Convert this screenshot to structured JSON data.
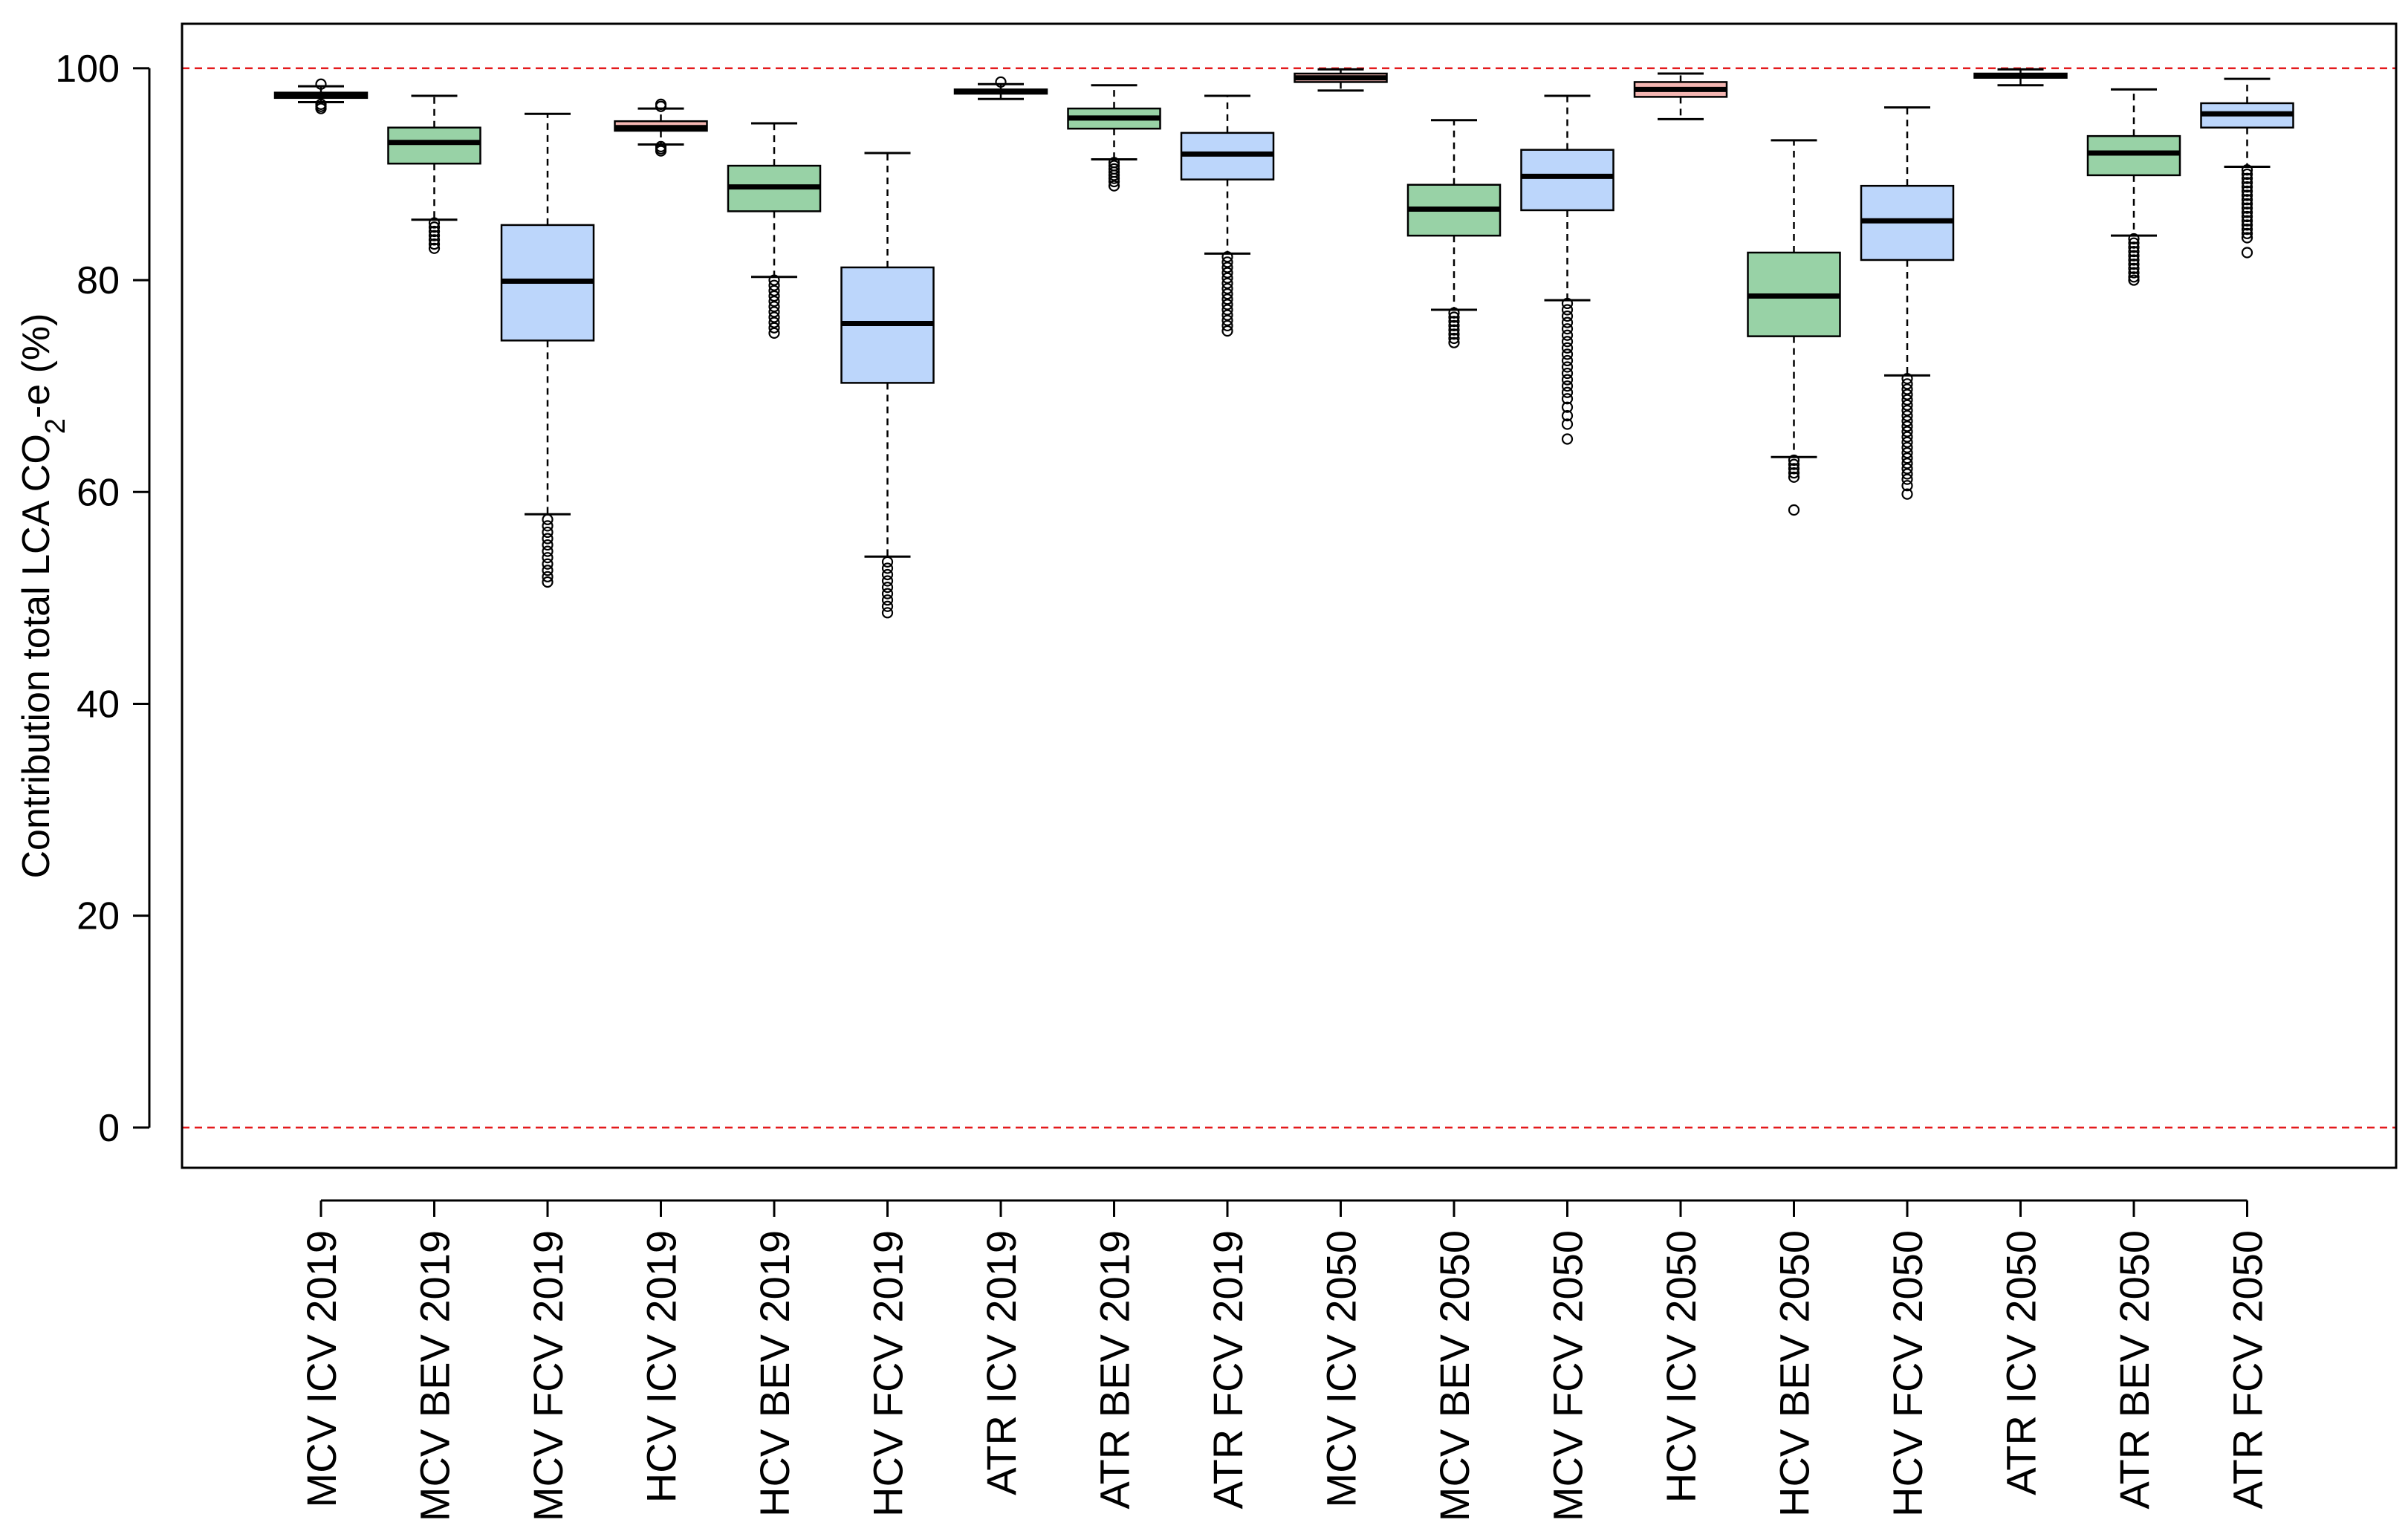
{
  "chart_data": {
    "type": "boxplot",
    "title": "",
    "xlabel": "",
    "ylabel": {
      "prefix": "Contribution total LCA CO",
      "subscript": "2",
      "suffix": "-e (%)"
    },
    "ylim": [
      -3.8,
      104.2
    ],
    "yticks": [
      0,
      20,
      40,
      60,
      80,
      100
    ],
    "ytick_labels": [
      "0",
      "20",
      "40",
      "60",
      "80",
      "100"
    ],
    "reference_lines": [
      100,
      0
    ],
    "reference_line_color": "#e41a1c",
    "colors": {
      "ICV": "#f4b6b2",
      "BEV": "#98d2a6",
      "FCV": "#bcd6fb"
    },
    "categories": [
      "MCV ICV 2019",
      "MCV BEV 2019",
      "MCV FCV 2019",
      "HCV ICV 2019",
      "HCV BEV 2019",
      "HCV FCV 2019",
      "ATR ICV 2019",
      "ATR BEV 2019",
      "ATR FCV 2019",
      "MCV ICV 2050",
      "MCV BEV 2050",
      "MCV FCV 2050",
      "HCV ICV 2050",
      "HCV BEV 2050",
      "HCV FCV 2050",
      "ATR ICV 2050",
      "ATR BEV 2050",
      "ATR FCV 2050"
    ],
    "boxes": [
      {
        "label": "MCV ICV 2019",
        "group": "ICV",
        "whisker_low": 96.8,
        "q1": 97.2,
        "median": 97.5,
        "q3": 97.7,
        "whisker_high": 98.3,
        "outliers_low": [
          96.6,
          96.4,
          96.2
        ],
        "outliers_high": [
          98.5
        ]
      },
      {
        "label": "MCV BEV 2019",
        "group": "BEV",
        "whisker_low": 85.7,
        "q1": 91.0,
        "median": 93.0,
        "q3": 94.4,
        "whisker_high": 97.4,
        "outliers_low": [
          85.4,
          85.0,
          84.6,
          84.2,
          83.8,
          83.4,
          83.0
        ],
        "outliers_high": []
      },
      {
        "label": "MCV FCV 2019",
        "group": "FCV",
        "whisker_low": 57.9,
        "q1": 74.3,
        "median": 79.9,
        "q3": 85.2,
        "whisker_high": 95.7,
        "outliers_low": [
          57.4,
          56.8,
          56.2,
          55.6,
          55.0,
          54.4,
          53.8,
          53.2,
          52.6,
          52.0,
          51.5
        ],
        "outliers_high": []
      },
      {
        "label": "HCV ICV 2019",
        "group": "ICV",
        "whisker_low": 92.8,
        "q1": 94.1,
        "median": 94.4,
        "q3": 95.0,
        "whisker_high": 96.2,
        "outliers_low": [
          92.6,
          92.4,
          92.2
        ],
        "outliers_high": [
          96.4,
          96.6
        ]
      },
      {
        "label": "HCV BEV 2019",
        "group": "BEV",
        "whisker_low": 80.3,
        "q1": 86.5,
        "median": 88.8,
        "q3": 90.8,
        "whisker_high": 94.8,
        "outliers_low": [
          80.0,
          79.5,
          79.0,
          78.5,
          78.0,
          77.5,
          77.0,
          76.5,
          76.0,
          75.5,
          75.0
        ],
        "outliers_high": []
      },
      {
        "label": "HCV FCV 2019",
        "group": "FCV",
        "whisker_low": 53.9,
        "q1": 70.3,
        "median": 75.9,
        "q3": 81.2,
        "whisker_high": 92.0,
        "outliers_low": [
          53.4,
          52.8,
          52.2,
          51.6,
          51.0,
          50.4,
          49.8,
          49.2,
          48.6
        ],
        "outliers_high": []
      },
      {
        "label": "ATR ICV 2019",
        "group": "ICV",
        "whisker_low": 97.1,
        "q1": 97.6,
        "median": 97.8,
        "q3": 98.0,
        "whisker_high": 98.5,
        "outliers_low": [],
        "outliers_high": [
          98.7
        ]
      },
      {
        "label": "ATR BEV 2019",
        "group": "BEV",
        "whisker_low": 91.4,
        "q1": 94.3,
        "median": 95.3,
        "q3": 96.2,
        "whisker_high": 98.4,
        "outliers_low": [
          91.1,
          90.8,
          90.5,
          90.2,
          89.9,
          89.6,
          89.3,
          88.9
        ],
        "outliers_high": []
      },
      {
        "label": "ATR FCV 2019",
        "group": "FCV",
        "whisker_low": 82.5,
        "q1": 89.5,
        "median": 91.9,
        "q3": 93.9,
        "whisker_high": 97.4,
        "outliers_low": [
          82.2,
          81.7,
          81.2,
          80.7,
          80.2,
          79.7,
          79.2,
          78.7,
          78.2,
          77.7,
          77.2,
          76.7,
          76.2,
          75.7,
          75.2
        ],
        "outliers_high": []
      },
      {
        "label": "MCV ICV 2050",
        "group": "ICV",
        "whisker_low": 97.9,
        "q1": 98.7,
        "median": 99.1,
        "q3": 99.5,
        "whisker_high": 99.9,
        "outliers_low": [],
        "outliers_high": []
      },
      {
        "label": "MCV BEV 2050",
        "group": "BEV",
        "whisker_low": 77.2,
        "q1": 84.2,
        "median": 86.7,
        "q3": 89.0,
        "whisker_high": 95.1,
        "outliers_low": [
          76.9,
          76.5,
          76.1,
          75.7,
          75.3,
          74.9,
          74.5,
          74.1
        ],
        "outliers_high": []
      },
      {
        "label": "MCV FCV 2050",
        "group": "FCV",
        "whisker_low": 78.1,
        "q1": 86.6,
        "median": 89.8,
        "q3": 92.3,
        "whisker_high": 97.4,
        "outliers_low": [
          77.8,
          77.2,
          76.6,
          76.0,
          75.4,
          74.8,
          74.2,
          73.6,
          73.0,
          72.4,
          71.8,
          71.2,
          70.6,
          70.0,
          69.4,
          68.8,
          68.0,
          67.2,
          66.4,
          65.0
        ],
        "outliers_high": []
      },
      {
        "label": "HCV ICV 2050",
        "group": "ICV",
        "whisker_low": 95.2,
        "q1": 97.3,
        "median": 98.0,
        "q3": 98.7,
        "whisker_high": 99.5,
        "outliers_low": [],
        "outliers_high": []
      },
      {
        "label": "HCV BEV 2050",
        "group": "BEV",
        "whisker_low": 63.3,
        "q1": 74.7,
        "median": 78.5,
        "q3": 82.6,
        "whisker_high": 93.2,
        "outliers_low": [
          63.0,
          62.6,
          62.2,
          61.8,
          61.4,
          58.3
        ],
        "outliers_high": []
      },
      {
        "label": "HCV FCV 2050",
        "group": "FCV",
        "whisker_low": 71.0,
        "q1": 81.9,
        "median": 85.6,
        "q3": 88.9,
        "whisker_high": 96.3,
        "outliers_low": [
          70.7,
          70.2,
          69.7,
          69.2,
          68.7,
          68.2,
          67.7,
          67.2,
          66.7,
          66.2,
          65.7,
          65.2,
          64.7,
          64.2,
          63.7,
          63.2,
          62.7,
          62.2,
          61.7,
          61.2,
          60.6,
          59.8
        ],
        "outliers_high": []
      },
      {
        "label": "ATR ICV 2050",
        "group": "ICV",
        "whisker_low": 98.4,
        "q1": 99.1,
        "median": 99.3,
        "q3": 99.5,
        "whisker_high": 99.9,
        "outliers_low": [],
        "outliers_high": []
      },
      {
        "label": "ATR BEV 2050",
        "group": "BEV",
        "whisker_low": 84.2,
        "q1": 89.9,
        "median": 92.0,
        "q3": 93.6,
        "whisker_high": 98.0,
        "outliers_low": [
          83.9,
          83.5,
          83.1,
          82.7,
          82.3,
          81.9,
          81.5,
          81.1,
          80.7,
          80.3,
          80.0
        ],
        "outliers_high": []
      },
      {
        "label": "ATR FCV 2050",
        "group": "FCV",
        "whisker_low": 90.7,
        "q1": 94.4,
        "median": 95.7,
        "q3": 96.7,
        "whisker_high": 99.0,
        "outliers_low": [
          90.4,
          90.0,
          89.6,
          89.2,
          88.8,
          88.4,
          88.0,
          87.6,
          87.2,
          86.8,
          86.4,
          86.0,
          85.6,
          85.2,
          84.8,
          84.4,
          84.0,
          82.6
        ],
        "outliers_high": []
      }
    ]
  }
}
